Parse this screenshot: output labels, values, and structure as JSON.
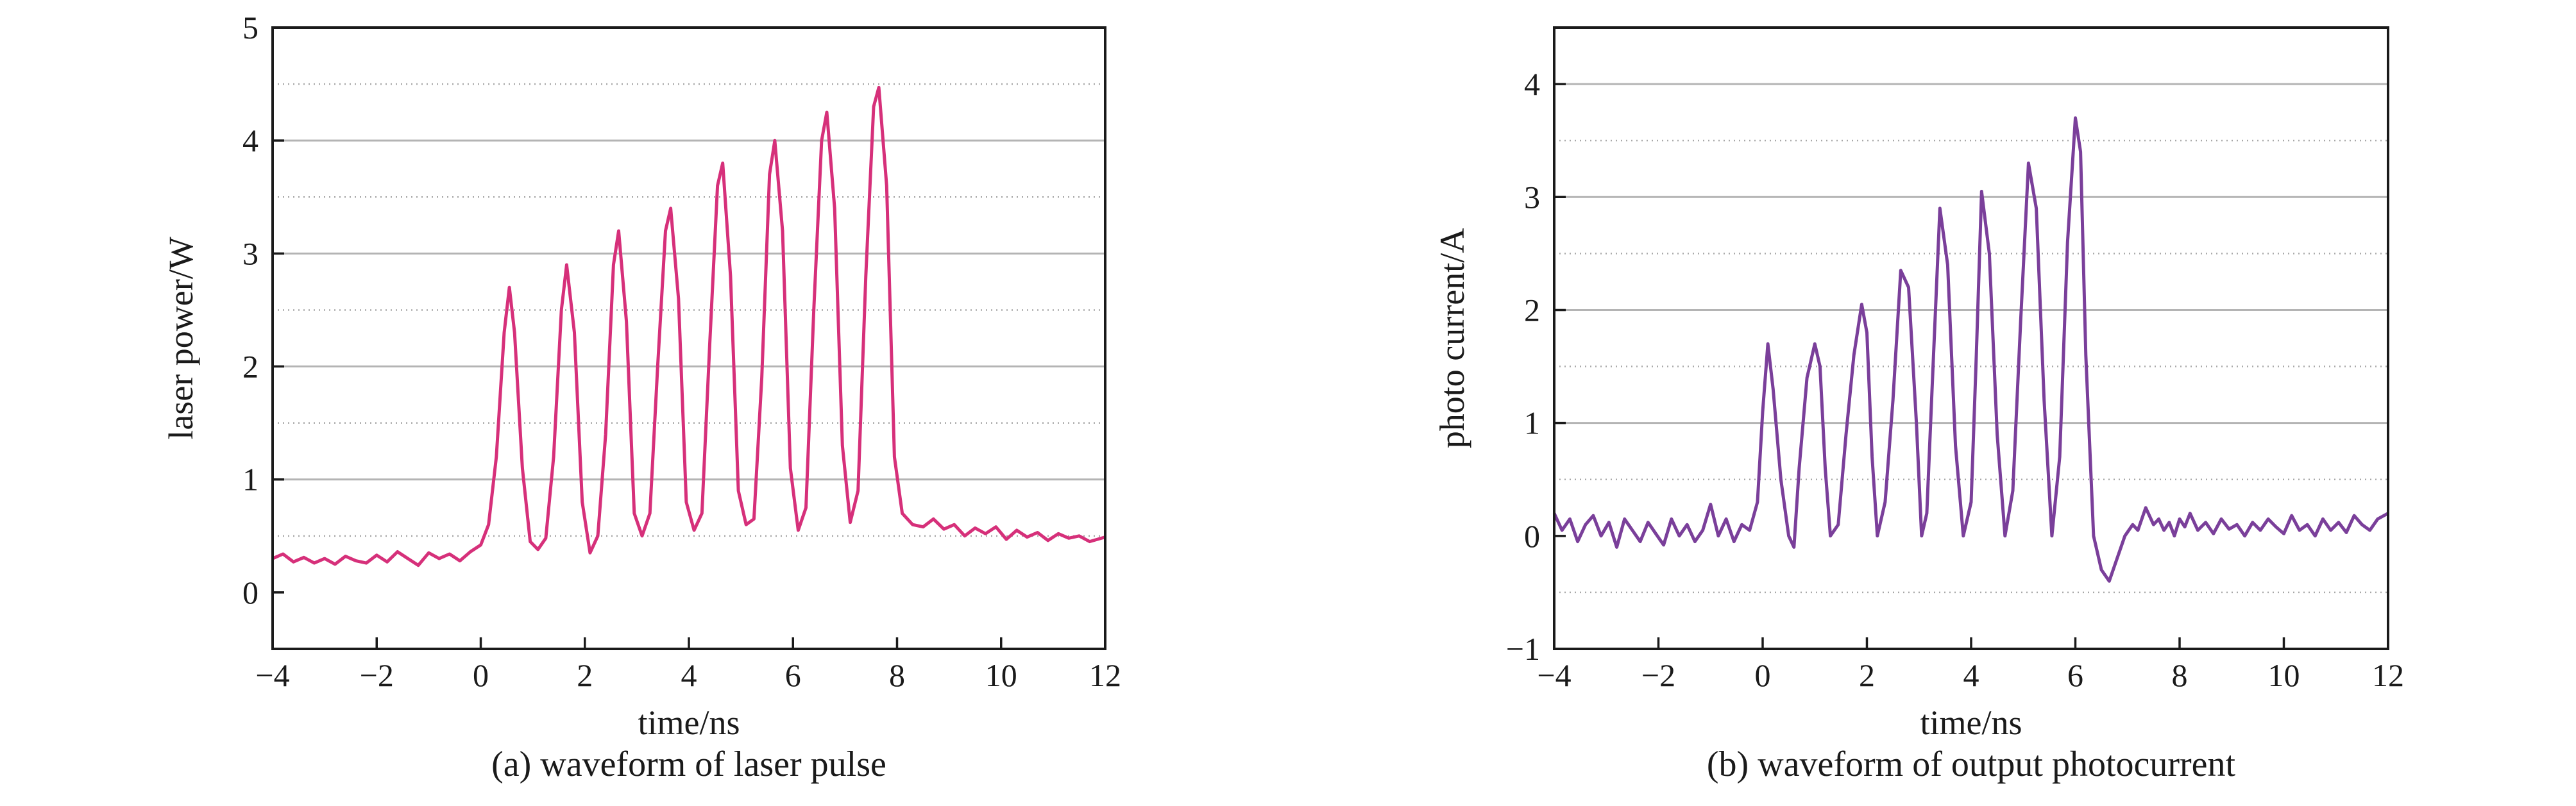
{
  "chart_data": [
    {
      "type": "line",
      "caption": "(a) waveform of laser pulse",
      "xlabel": "time/ns",
      "ylabel": "laser power/W",
      "xlim": [
        -4,
        12
      ],
      "ylim": [
        -0.5,
        5
      ],
      "xticks": [
        -4,
        -2,
        0,
        2,
        4,
        6,
        8,
        10,
        12
      ],
      "xtick_labels": [
        "−4",
        "−2",
        "0",
        "2",
        "4",
        "6",
        "8",
        "10",
        "12"
      ],
      "yticks": [
        0,
        1,
        2,
        3,
        4,
        5
      ],
      "ytick_labels": [
        "0",
        "1",
        "2",
        "3",
        "4",
        "5"
      ],
      "grid": {
        "major": [
          1,
          2,
          3,
          4
        ],
        "minor": [
          0.5,
          1.5,
          2.5,
          3.5,
          4.5
        ]
      },
      "color": "#d6307a",
      "series": [
        {
          "x": [
            -4.0,
            -3.8,
            -3.6,
            -3.4,
            -3.2,
            -3.0,
            -2.8,
            -2.6,
            -2.4,
            -2.2,
            -2.0,
            -1.8,
            -1.6,
            -1.4,
            -1.2,
            -1.0,
            -0.8,
            -0.6,
            -0.4,
            -0.2,
            0.0,
            0.15,
            0.3,
            0.45,
            0.55,
            0.65,
            0.8,
            0.95,
            1.1,
            1.25,
            1.4,
            1.55,
            1.65,
            1.8,
            1.95,
            2.1,
            2.25,
            2.4,
            2.55,
            2.65,
            2.8,
            2.95,
            3.1,
            3.25,
            3.4,
            3.55,
            3.65,
            3.8,
            3.95,
            4.1,
            4.25,
            4.4,
            4.55,
            4.65,
            4.8,
            4.95,
            5.1,
            5.25,
            5.4,
            5.55,
            5.65,
            5.8,
            5.95,
            6.1,
            6.25,
            6.4,
            6.55,
            6.65,
            6.8,
            6.95,
            7.1,
            7.25,
            7.4,
            7.55,
            7.65,
            7.8,
            7.95,
            8.1,
            8.3,
            8.5,
            8.7,
            8.9,
            9.1,
            9.3,
            9.5,
            9.7,
            9.9,
            10.1,
            10.3,
            10.5,
            10.7,
            10.9,
            11.1,
            11.3,
            11.5,
            11.7,
            12.0
          ],
          "y": [
            0.3,
            0.34,
            0.27,
            0.31,
            0.26,
            0.3,
            0.25,
            0.32,
            0.28,
            0.26,
            0.33,
            0.27,
            0.36,
            0.3,
            0.24,
            0.35,
            0.3,
            0.34,
            0.28,
            0.36,
            0.42,
            0.6,
            1.2,
            2.3,
            2.7,
            2.3,
            1.1,
            0.45,
            0.38,
            0.48,
            1.2,
            2.5,
            2.9,
            2.3,
            0.8,
            0.35,
            0.5,
            1.4,
            2.9,
            3.2,
            2.4,
            0.7,
            0.5,
            0.7,
            2.0,
            3.2,
            3.4,
            2.6,
            0.8,
            0.55,
            0.7,
            2.2,
            3.6,
            3.8,
            2.8,
            0.9,
            0.6,
            0.65,
            1.9,
            3.7,
            4.0,
            3.2,
            1.1,
            0.55,
            0.75,
            2.5,
            4.0,
            4.25,
            3.4,
            1.3,
            0.62,
            0.9,
            2.8,
            4.3,
            4.47,
            3.6,
            1.2,
            0.7,
            0.6,
            0.58,
            0.65,
            0.56,
            0.6,
            0.5,
            0.57,
            0.52,
            0.58,
            0.47,
            0.55,
            0.49,
            0.53,
            0.46,
            0.52,
            0.48,
            0.5,
            0.45,
            0.49
          ]
        }
      ]
    },
    {
      "type": "line",
      "caption": "(b) waveform of output photocurrent",
      "xlabel": "time/ns",
      "ylabel": "photo current/A",
      "xlim": [
        -4,
        12
      ],
      "ylim": [
        -1,
        4.5
      ],
      "xticks": [
        -4,
        -2,
        0,
        2,
        4,
        6,
        8,
        10,
        12
      ],
      "xtick_labels": [
        "−4",
        "−2",
        "0",
        "2",
        "4",
        "6",
        "8",
        "10",
        "12"
      ],
      "yticks": [
        -1,
        0,
        1,
        2,
        3,
        4
      ],
      "ytick_labels": [
        "−1",
        "0",
        "1",
        "2",
        "3",
        "4"
      ],
      "grid": {
        "major": [
          1,
          2,
          3,
          4
        ],
        "minor": [
          -0.5,
          0.5,
          1.5,
          2.5,
          3.5
        ]
      },
      "color": "#7a3f9a",
      "series": [
        {
          "x": [
            -4.0,
            -3.85,
            -3.7,
            -3.55,
            -3.4,
            -3.25,
            -3.1,
            -2.95,
            -2.8,
            -2.65,
            -2.5,
            -2.35,
            -2.2,
            -2.05,
            -1.9,
            -1.75,
            -1.6,
            -1.45,
            -1.3,
            -1.15,
            -1.0,
            -0.85,
            -0.7,
            -0.55,
            -0.4,
            -0.25,
            -0.1,
            0.0,
            0.1,
            0.2,
            0.35,
            0.5,
            0.6,
            0.7,
            0.85,
            1.0,
            1.1,
            1.2,
            1.3,
            1.45,
            1.6,
            1.75,
            1.9,
            2.0,
            2.1,
            2.2,
            2.35,
            2.5,
            2.65,
            2.8,
            2.95,
            3.05,
            3.15,
            3.25,
            3.4,
            3.55,
            3.7,
            3.85,
            4.0,
            4.1,
            4.2,
            4.35,
            4.5,
            4.65,
            4.8,
            4.95,
            5.1,
            5.25,
            5.4,
            5.55,
            5.7,
            5.85,
            6.0,
            6.1,
            6.2,
            6.35,
            6.5,
            6.65,
            6.8,
            6.95,
            7.1,
            7.2,
            7.35,
            7.5,
            7.6,
            7.7,
            7.8,
            7.9,
            8.0,
            8.1,
            8.2,
            8.35,
            8.5,
            8.65,
            8.8,
            8.95,
            9.1,
            9.25,
            9.4,
            9.55,
            9.7,
            9.85,
            10.0,
            10.15,
            10.3,
            10.45,
            10.6,
            10.75,
            10.9,
            11.05,
            11.2,
            11.35,
            11.5,
            11.65,
            11.8,
            12.0
          ],
          "y": [
            0.2,
            0.05,
            0.15,
            -0.05,
            0.1,
            0.18,
            0.0,
            0.12,
            -0.1,
            0.15,
            0.05,
            -0.05,
            0.12,
            0.02,
            -0.08,
            0.15,
            0.0,
            0.1,
            -0.05,
            0.05,
            0.28,
            0.0,
            0.15,
            -0.05,
            0.1,
            0.05,
            0.3,
            1.1,
            1.7,
            1.3,
            0.5,
            0.0,
            -0.1,
            0.6,
            1.4,
            1.7,
            1.5,
            0.6,
            0.0,
            0.1,
            0.9,
            1.6,
            2.05,
            1.8,
            0.7,
            0.0,
            0.3,
            1.2,
            2.35,
            2.2,
            1.0,
            0.0,
            0.2,
            1.3,
            2.9,
            2.4,
            0.8,
            0.0,
            0.3,
            1.6,
            3.05,
            2.5,
            0.9,
            0.0,
            0.4,
            1.9,
            3.3,
            2.9,
            1.2,
            0.0,
            0.7,
            2.6,
            3.7,
            3.4,
            1.6,
            0.0,
            -0.3,
            -0.4,
            -0.2,
            0.0,
            0.1,
            0.05,
            0.25,
            0.1,
            0.15,
            0.05,
            0.12,
            0.0,
            0.15,
            0.08,
            0.2,
            0.05,
            0.12,
            0.02,
            0.15,
            0.06,
            0.1,
            0.0,
            0.12,
            0.05,
            0.15,
            0.08,
            0.02,
            0.18,
            0.05,
            0.1,
            0.0,
            0.15,
            0.05,
            0.12,
            0.03,
            0.18,
            0.1,
            0.05,
            0.15,
            0.2
          ]
        }
      ]
    }
  ]
}
